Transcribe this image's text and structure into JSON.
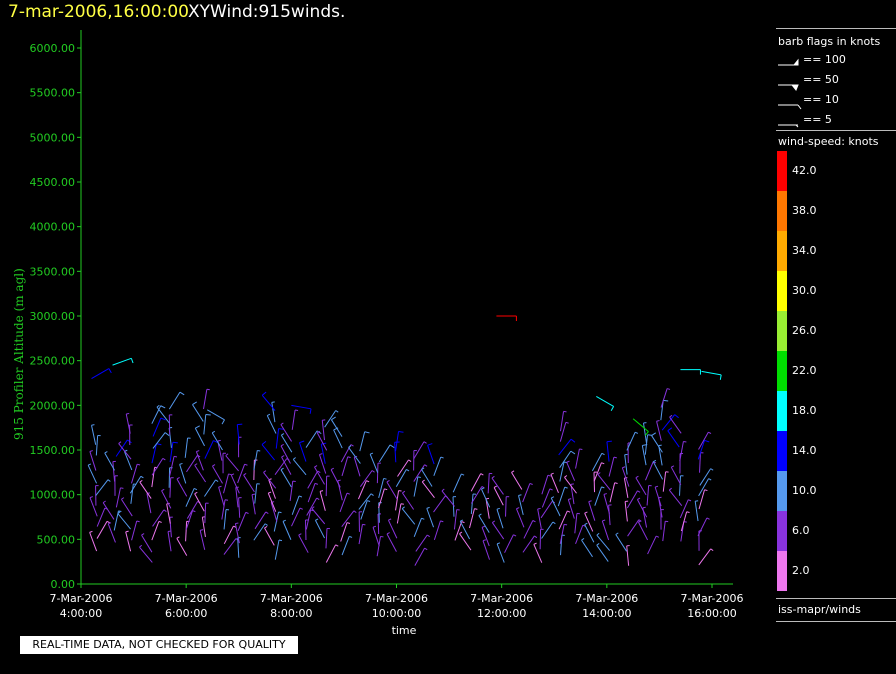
{
  "header": {
    "date_time": "7-mar-2006,16:00:00",
    "product": "XYWind:915winds."
  },
  "legend": {
    "barb_title": "barb flags in knots",
    "barbs": [
      {
        "label": "== 100",
        "value": 100
      },
      {
        "label": "== 50",
        "value": 50
      },
      {
        "label": "== 10",
        "value": 10
      },
      {
        "label": "== 5",
        "value": 5
      }
    ],
    "colorbar_title": "wind-speed: knots",
    "colorbar": [
      {
        "label": "42.0",
        "color": "#ff0000"
      },
      {
        "label": "38.0",
        "color": "#ff7700"
      },
      {
        "label": "34.0",
        "color": "#ffaa00"
      },
      {
        "label": "30.0",
        "color": "#ffff00"
      },
      {
        "label": "26.0",
        "color": "#99ee33"
      },
      {
        "label": "22.0",
        "color": "#00dd00"
      },
      {
        "label": "18.0",
        "color": "#00ffff"
      },
      {
        "label": "14.0",
        "color": "#0000ff"
      },
      {
        "label": "10.0",
        "color": "#5599ee"
      },
      {
        "label": "6.0",
        "color": "#8833dd"
      },
      {
        "label": "2.0",
        "color": "#ee77ee"
      }
    ],
    "source": "iss-mapr/winds"
  },
  "footer": {
    "qc_notice": "REAL-TIME DATA, NOT CHECKED FOR QUALITY"
  },
  "chart_data": {
    "type": "scatter",
    "xlabel": "time",
    "ylabel": "915 Profiler Altitude (m agl)",
    "xlim": [
      4,
      16.25
    ],
    "ylim": [
      0,
      6250
    ],
    "x_ticks": [
      {
        "date": "7-Mar-2006",
        "time": "4:00:00",
        "hour": 4
      },
      {
        "date": "7-Mar-2006",
        "time": "6:00:00",
        "hour": 6
      },
      {
        "date": "7-Mar-2006",
        "time": "8:00:00",
        "hour": 8
      },
      {
        "date": "7-Mar-2006",
        "time": "10:00:00",
        "hour": 10
      },
      {
        "date": "7-Mar-2006",
        "time": "12:00:00",
        "hour": 12
      },
      {
        "date": "7-Mar-2006",
        "time": "14:00:00",
        "hour": 14
      },
      {
        "date": "7-Mar-2006",
        "time": "16:00:00",
        "hour": 16
      }
    ],
    "y_ticks": [
      "0.00",
      "500.00",
      "1000.00",
      "1500.00",
      "2000.00",
      "2500.00",
      "3000.00",
      "3500.00",
      "4000.00",
      "4500.00",
      "5000.00",
      "5500.00",
      "6000.00"
    ],
    "profile_times": [
      4.3,
      4.65,
      4.95,
      5.35,
      5.7,
      6.0,
      6.35,
      6.7,
      7.0,
      7.3,
      7.7,
      8.0,
      8.3,
      8.65,
      8.95,
      9.3,
      9.65,
      10.0,
      10.35,
      10.7,
      11.1,
      11.4,
      11.75,
      12.05,
      12.4,
      12.75,
      13.1,
      13.4,
      13.75,
      14.05,
      14.4,
      14.75,
      15.05,
      15.4,
      15.75
    ],
    "notable_barbs": [
      {
        "hour": 11.9,
        "altitude": 3000,
        "speed": 42,
        "direction": 270
      },
      {
        "hour": 4.2,
        "altitude": 2300,
        "speed": 14,
        "direction": 240
      },
      {
        "hour": 4.6,
        "altitude": 2450,
        "speed": 18,
        "direction": 250
      },
      {
        "hour": 15.4,
        "altitude": 2400,
        "speed": 18,
        "direction": 270
      },
      {
        "hour": 15.8,
        "altitude": 2380,
        "speed": 18,
        "direction": 280
      },
      {
        "hour": 13.8,
        "altitude": 2100,
        "speed": 18,
        "direction": 300
      },
      {
        "hour": 14.5,
        "altitude": 1850,
        "speed": 22,
        "direction": 310
      },
      {
        "hour": 8.0,
        "altitude": 2000,
        "speed": 14,
        "direction": 280
      },
      {
        "hour": 6.4,
        "altitude": 1950,
        "speed": 10,
        "direction": 300
      }
    ],
    "grid": false,
    "grid_color": "#22cc22"
  }
}
